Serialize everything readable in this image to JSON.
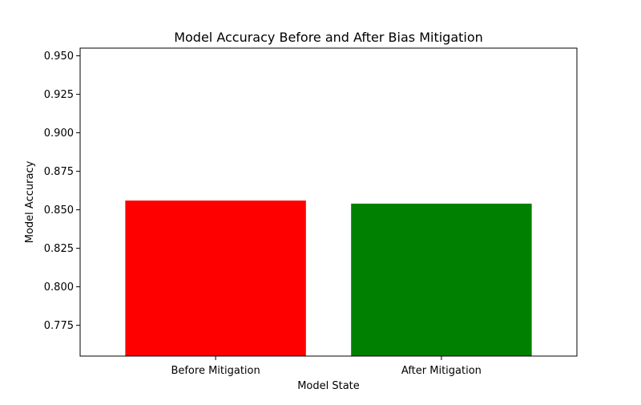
{
  "chart_data": {
    "type": "bar",
    "title": "Model Accuracy Before and After Bias Mitigation",
    "xlabel": "Model State",
    "ylabel": "Model Accuracy",
    "categories": [
      "Before Mitigation",
      "After Mitigation"
    ],
    "values": [
      0.856,
      0.854
    ],
    "colors": [
      "#ff0000",
      "#008000"
    ],
    "ylim": [
      0.755,
      0.955
    ],
    "yticks": [
      "0.775",
      "0.800",
      "0.825",
      "0.850",
      "0.875",
      "0.900",
      "0.925",
      "0.950"
    ],
    "grid": false,
    "legend": "none"
  }
}
